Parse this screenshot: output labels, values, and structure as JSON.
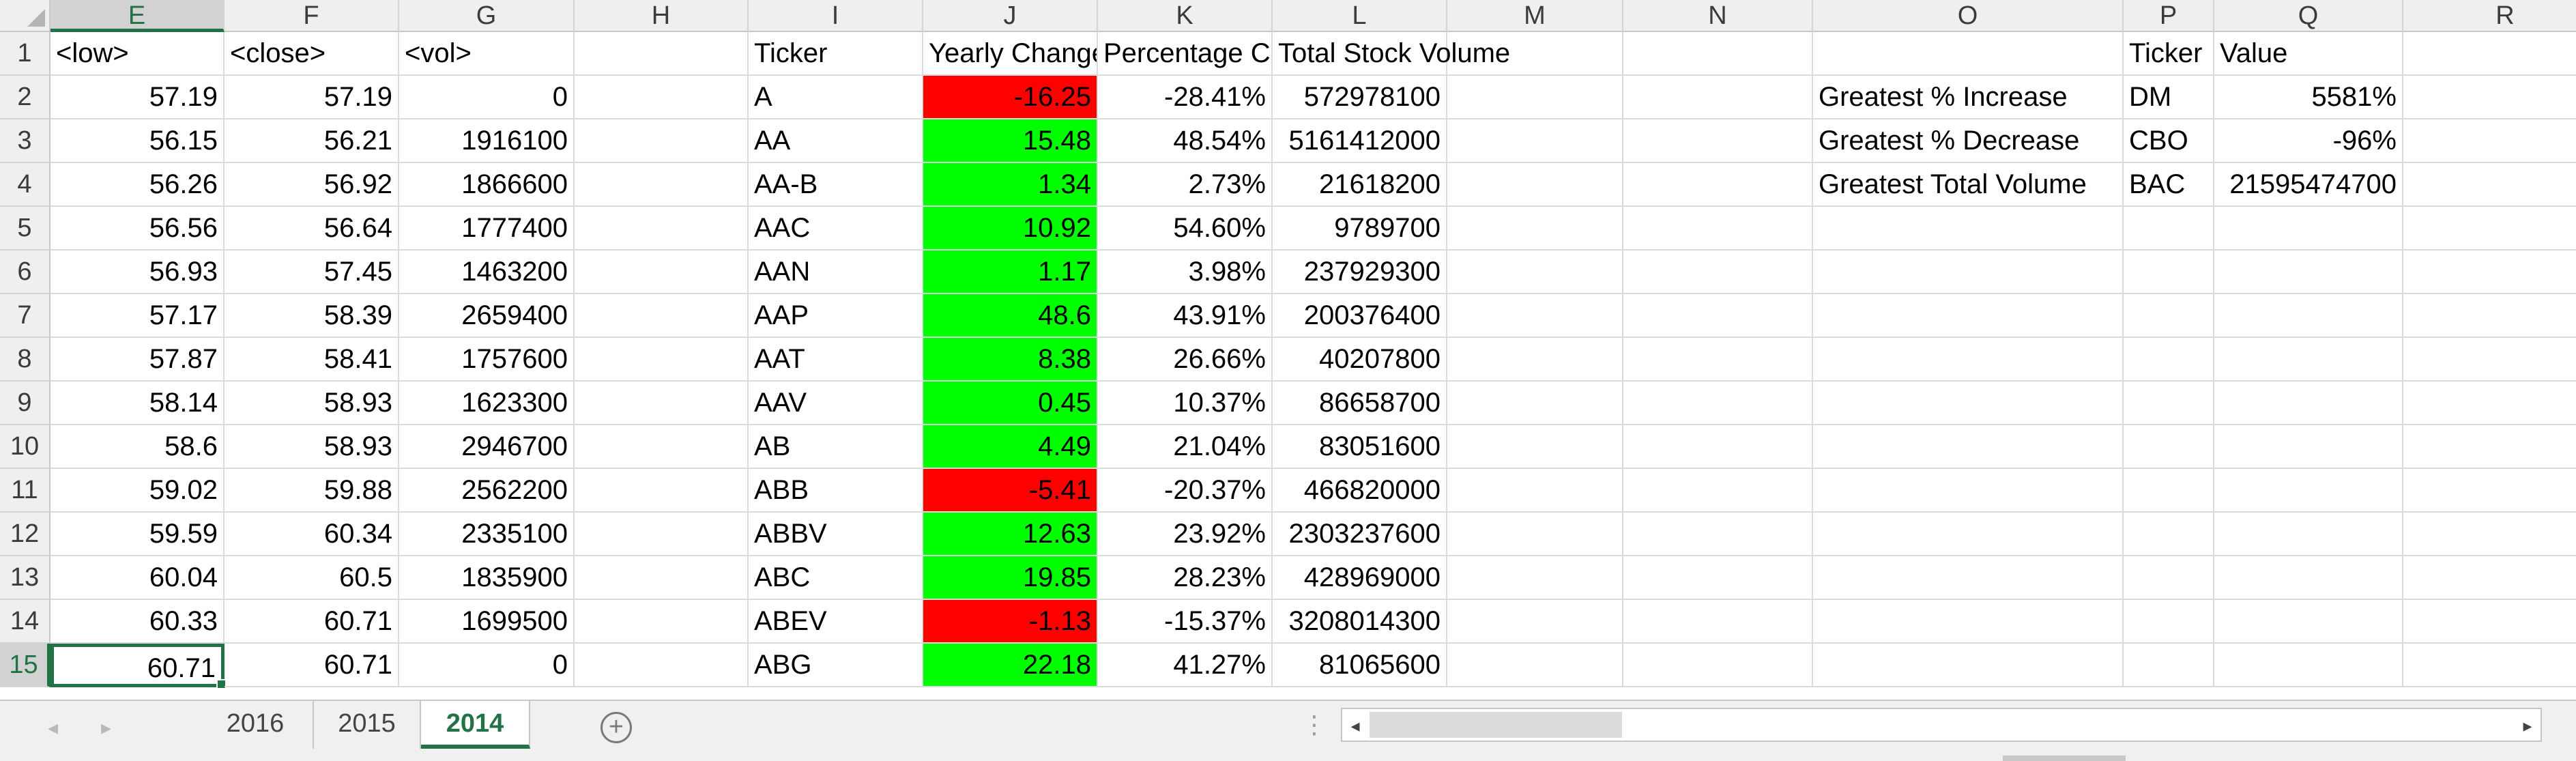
{
  "columns": [
    "E",
    "F",
    "G",
    "H",
    "I",
    "J",
    "K",
    "L",
    "M",
    "N",
    "O",
    "P",
    "Q",
    "R"
  ],
  "active_column": "E",
  "active_row": "15",
  "rows": [
    {
      "n": "1",
      "E": "<low>",
      "F": "<close>",
      "G": "<vol>",
      "H": "",
      "I": "Ticker",
      "J": "Yearly Change",
      "K": "Percentage Change",
      "L": "Total Stock Volume",
      "M": "",
      "N": "",
      "O": "",
      "P": "Ticker",
      "Q": "Value",
      "R": "",
      "J_fill": ""
    },
    {
      "n": "2",
      "E": "57.19",
      "F": "57.19",
      "G": "0",
      "H": "",
      "I": "A",
      "J": "-16.25",
      "K": "-28.41%",
      "L": "572978100",
      "M": "",
      "N": "",
      "O": "Greatest % Increase",
      "P": "DM",
      "Q": "5581%",
      "R": "",
      "J_fill": "red"
    },
    {
      "n": "3",
      "E": "56.15",
      "F": "56.21",
      "G": "1916100",
      "H": "",
      "I": "AA",
      "J": "15.48",
      "K": "48.54%",
      "L": "5161412000",
      "M": "",
      "N": "",
      "O": "Greatest % Decrease",
      "P": "CBO",
      "Q": "-96%",
      "R": "",
      "J_fill": "green"
    },
    {
      "n": "4",
      "E": "56.26",
      "F": "56.92",
      "G": "1866600",
      "H": "",
      "I": "AA-B",
      "J": "1.34",
      "K": "2.73%",
      "L": "21618200",
      "M": "",
      "N": "",
      "O": "Greatest Total Volume",
      "P": "BAC",
      "Q": "21595474700",
      "R": "",
      "J_fill": "green"
    },
    {
      "n": "5",
      "E": "56.56",
      "F": "56.64",
      "G": "1777400",
      "H": "",
      "I": "AAC",
      "J": "10.92",
      "K": "54.60%",
      "L": "9789700",
      "M": "",
      "N": "",
      "O": "",
      "P": "",
      "Q": "",
      "R": "",
      "J_fill": "green"
    },
    {
      "n": "6",
      "E": "56.93",
      "F": "57.45",
      "G": "1463200",
      "H": "",
      "I": "AAN",
      "J": "1.17",
      "K": "3.98%",
      "L": "237929300",
      "M": "",
      "N": "",
      "O": "",
      "P": "",
      "Q": "",
      "R": "",
      "J_fill": "green"
    },
    {
      "n": "7",
      "E": "57.17",
      "F": "58.39",
      "G": "2659400",
      "H": "",
      "I": "AAP",
      "J": "48.6",
      "K": "43.91%",
      "L": "200376400",
      "M": "",
      "N": "",
      "O": "",
      "P": "",
      "Q": "",
      "R": "",
      "J_fill": "green"
    },
    {
      "n": "8",
      "E": "57.87",
      "F": "58.41",
      "G": "1757600",
      "H": "",
      "I": "AAT",
      "J": "8.38",
      "K": "26.66%",
      "L": "40207800",
      "M": "",
      "N": "",
      "O": "",
      "P": "",
      "Q": "",
      "R": "",
      "J_fill": "green"
    },
    {
      "n": "9",
      "E": "58.14",
      "F": "58.93",
      "G": "1623300",
      "H": "",
      "I": "AAV",
      "J": "0.45",
      "K": "10.37%",
      "L": "86658700",
      "M": "",
      "N": "",
      "O": "",
      "P": "",
      "Q": "",
      "R": "",
      "J_fill": "green"
    },
    {
      "n": "10",
      "E": "58.6",
      "F": "58.93",
      "G": "2946700",
      "H": "",
      "I": "AB",
      "J": "4.49",
      "K": "21.04%",
      "L": "83051600",
      "M": "",
      "N": "",
      "O": "",
      "P": "",
      "Q": "",
      "R": "",
      "J_fill": "green"
    },
    {
      "n": "11",
      "E": "59.02",
      "F": "59.88",
      "G": "2562200",
      "H": "",
      "I": "ABB",
      "J": "-5.41",
      "K": "-20.37%",
      "L": "466820000",
      "M": "",
      "N": "",
      "O": "",
      "P": "",
      "Q": "",
      "R": "",
      "J_fill": "red"
    },
    {
      "n": "12",
      "E": "59.59",
      "F": "60.34",
      "G": "2335100",
      "H": "",
      "I": "ABBV",
      "J": "12.63",
      "K": "23.92%",
      "L": "2303237600",
      "M": "",
      "N": "",
      "O": "",
      "P": "",
      "Q": "",
      "R": "",
      "J_fill": "green"
    },
    {
      "n": "13",
      "E": "60.04",
      "F": "60.5",
      "G": "1835900",
      "H": "",
      "I": "ABC",
      "J": "19.85",
      "K": "28.23%",
      "L": "428969000",
      "M": "",
      "N": "",
      "O": "",
      "P": "",
      "Q": "",
      "R": "",
      "J_fill": "green"
    },
    {
      "n": "14",
      "E": "60.33",
      "F": "60.71",
      "G": "1699500",
      "H": "",
      "I": "ABEV",
      "J": "-1.13",
      "K": "-15.37%",
      "L": "3208014300",
      "M": "",
      "N": "",
      "O": "",
      "P": "",
      "Q": "",
      "R": "",
      "J_fill": "red"
    },
    {
      "n": "15",
      "E": "60.71",
      "F": "60.71",
      "G": "0",
      "H": "",
      "I": "ABG",
      "J": "22.18",
      "K": "41.27%",
      "L": "81065600",
      "M": "",
      "N": "",
      "O": "",
      "P": "",
      "Q": "",
      "R": "",
      "J_fill": "green"
    }
  ],
  "sheet_tabs": [
    {
      "label": "2016",
      "active": false
    },
    {
      "label": "2015",
      "active": false
    },
    {
      "label": "2014",
      "active": true
    }
  ],
  "tabbar": {
    "prev_glyph": "◂",
    "next_glyph": "▸",
    "add_glyph": "+",
    "split_glyph": "⋮",
    "scroll_left_glyph": "◂",
    "scroll_right_glyph": "▸"
  },
  "colors": {
    "negative_fill": "#ff0000",
    "positive_fill": "#00ff00",
    "accent": "#217346"
  }
}
